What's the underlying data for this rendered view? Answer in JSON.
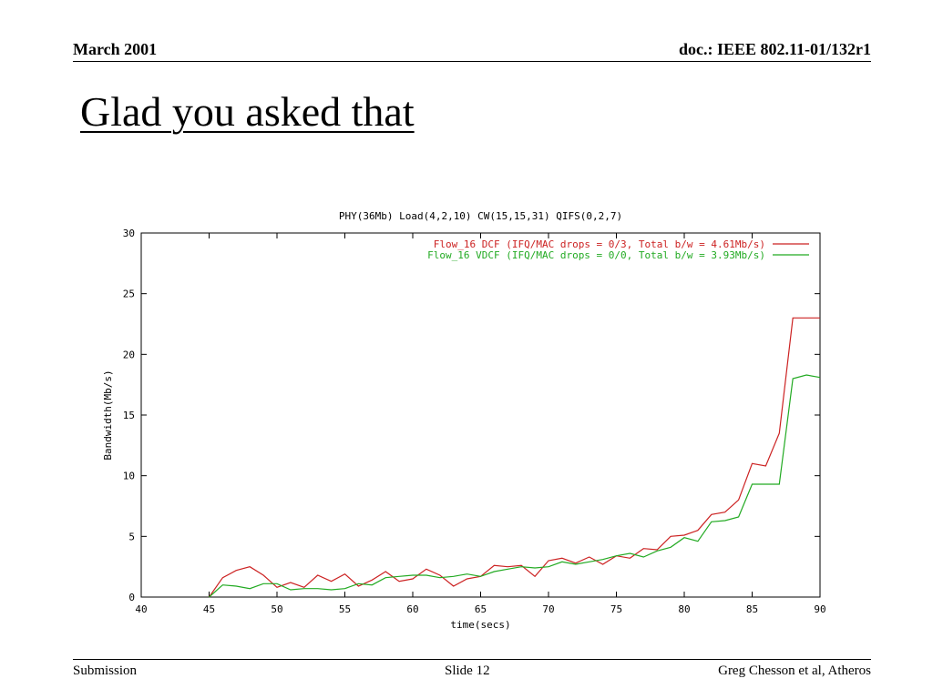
{
  "header": {
    "left": "March  2001",
    "right": "doc.: IEEE 802.11-01/132r1"
  },
  "slide": {
    "title": "Glad you asked that"
  },
  "footer": {
    "left": "Submission",
    "center": "Slide 12",
    "right": "Greg Chesson et al, Atheros"
  },
  "chart_data": {
    "type": "line",
    "title": "PHY(36Mb) Load(4,2,10) CW(15,15,31) QIFS(0,2,7)",
    "xlabel": "time(secs)",
    "ylabel": "Bandwidth(Mb/s)",
    "xlim": [
      40,
      90
    ],
    "ylim": [
      0,
      30
    ],
    "xticks": [
      40,
      45,
      50,
      55,
      60,
      65,
      70,
      75,
      80,
      85,
      90
    ],
    "yticks": [
      0,
      5,
      10,
      15,
      20,
      25,
      30
    ],
    "grid": false,
    "legend_position": "top-right",
    "series": [
      {
        "name": "Flow_16 DCF  (IFQ/MAC drops = 0/3, Total b/w = 4.61Mb/s)",
        "color": "#cc2222",
        "x": [
          45,
          46,
          47,
          48,
          49,
          50,
          51,
          52,
          53,
          54,
          55,
          56,
          57,
          58,
          59,
          60,
          61,
          62,
          63,
          64,
          65,
          66,
          67,
          68,
          69,
          70,
          71,
          72,
          73,
          74,
          75,
          76,
          77,
          78,
          79,
          80,
          81,
          82,
          83,
          84,
          85,
          86,
          87,
          88,
          89,
          90
        ],
        "y": [
          0,
          1.6,
          2.2,
          2.5,
          1.8,
          0.8,
          1.2,
          0.8,
          1.8,
          1.3,
          1.9,
          0.9,
          1.4,
          2.1,
          1.3,
          1.5,
          2.3,
          1.8,
          0.9,
          1.5,
          1.7,
          2.6,
          2.5,
          2.6,
          1.7,
          3.0,
          3.2,
          2.8,
          3.3,
          2.7,
          3.4,
          3.2,
          4.0,
          3.9,
          5.0,
          5.1,
          5.5,
          6.8,
          7.0,
          8.0,
          11.0,
          10.8,
          13.5,
          23.0,
          23.0,
          23.0
        ]
      },
      {
        "name": "Flow_16 VDCF (IFQ/MAC drops = 0/0, Total b/w = 3.93Mb/s)",
        "color": "#22aa22",
        "x": [
          45,
          46,
          47,
          48,
          49,
          50,
          51,
          52,
          53,
          54,
          55,
          56,
          57,
          58,
          59,
          60,
          61,
          62,
          63,
          64,
          65,
          66,
          67,
          68,
          69,
          70,
          71,
          72,
          73,
          74,
          75,
          76,
          77,
          78,
          79,
          80,
          81,
          82,
          83,
          84,
          85,
          86,
          87,
          88,
          89,
          90
        ],
        "y": [
          0,
          1.0,
          0.9,
          0.7,
          1.1,
          1.1,
          0.6,
          0.7,
          0.7,
          0.6,
          0.7,
          1.1,
          1.0,
          1.6,
          1.7,
          1.8,
          1.8,
          1.6,
          1.7,
          1.9,
          1.7,
          2.1,
          2.3,
          2.5,
          2.4,
          2.5,
          2.9,
          2.7,
          2.9,
          3.1,
          3.4,
          3.6,
          3.3,
          3.8,
          4.1,
          4.9,
          4.6,
          6.2,
          6.3,
          6.6,
          9.3,
          9.3,
          9.3,
          18.0,
          18.3,
          18.1
        ]
      }
    ]
  }
}
